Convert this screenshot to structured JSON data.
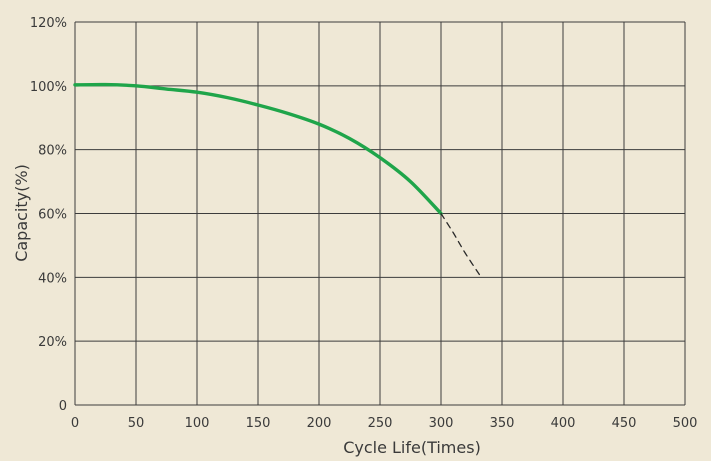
{
  "chart_data": {
    "type": "line",
    "title": "",
    "xlabel": "Cycle Life(Times)",
    "ylabel": "Capacity(%)",
    "xlim": [
      0,
      500
    ],
    "ylim": [
      0,
      120
    ],
    "x_ticks": [
      0,
      50,
      100,
      150,
      200,
      250,
      300,
      350,
      400,
      450,
      500
    ],
    "y_ticks": [
      0,
      20,
      40,
      60,
      80,
      100,
      120
    ],
    "x_tick_labels": [
      "0",
      "50",
      "100",
      "150",
      "200",
      "250",
      "300",
      "350",
      "400",
      "450",
      "500"
    ],
    "y_tick_labels": [
      "0",
      "20%",
      "40%",
      "60%",
      "80%",
      "100%",
      "120%"
    ],
    "grid": true,
    "series": [
      {
        "style": "solid",
        "color": "#1fa54a",
        "x": [
          0,
          25,
          50,
          75,
          100,
          125,
          150,
          175,
          200,
          225,
          250,
          275,
          300
        ],
        "y": [
          100.3,
          100.4,
          100,
          99,
          98,
          96.3,
          94,
          91.3,
          88,
          83.5,
          77.5,
          70,
          60
        ]
      },
      {
        "style": "dashed",
        "color": "#2a2a2a",
        "x": [
          300,
          310,
          320,
          333
        ],
        "y": [
          60,
          54,
          47.5,
          40
        ]
      }
    ]
  }
}
